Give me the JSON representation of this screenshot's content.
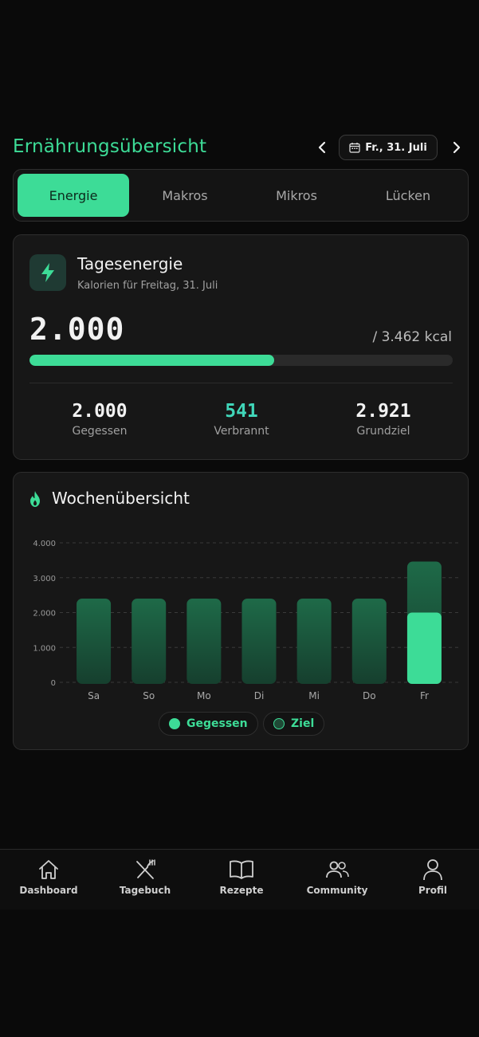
{
  "header": {
    "title": "Ernährungsübersicht",
    "date_label": "Fr., 31. Juli"
  },
  "tabs": [
    {
      "label": "Energie",
      "active": true
    },
    {
      "label": "Makros",
      "active": false
    },
    {
      "label": "Mikros",
      "active": false
    },
    {
      "label": "Lücken",
      "active": false
    }
  ],
  "energy": {
    "title": "Tagesenergie",
    "subtitle": "Kalorien für Freitag, 31. Juli",
    "consumed": "2.000",
    "goal_text": "/ 3.462 kcal",
    "progress_fraction": 0.5777,
    "stats": [
      {
        "value": "2.000",
        "label": "Gegessen"
      },
      {
        "value": "541",
        "label": "Verbrannt"
      },
      {
        "value": "2.921",
        "label": "Grundziel"
      }
    ]
  },
  "week": {
    "title": "Wochenübersicht",
    "legend": [
      {
        "label": "Gegessen"
      },
      {
        "label": "Ziel"
      }
    ]
  },
  "chart_data": {
    "type": "bar",
    "categories": [
      "Sa",
      "So",
      "Mo",
      "Di",
      "Mi",
      "Do",
      "Fr"
    ],
    "series": [
      {
        "name": "Gegessen",
        "values": [
          0,
          0,
          0,
          0,
          0,
          0,
          2000
        ]
      },
      {
        "name": "Ziel",
        "values": [
          2400,
          2400,
          2400,
          2400,
          2400,
          2400,
          3462
        ]
      }
    ],
    "y_ticks": [
      "4.000",
      "3.000",
      "2.000",
      "1.000",
      "0"
    ],
    "ylim": [
      0,
      4000
    ],
    "grid": true,
    "colors": {
      "eaten": "#3ddc97",
      "goal": "#1e6a48"
    }
  },
  "bottom_nav": [
    {
      "label": "Dashboard",
      "icon": "home-icon"
    },
    {
      "label": "Tagebuch",
      "icon": "utensils-icon"
    },
    {
      "label": "Rezepte",
      "icon": "book-icon"
    },
    {
      "label": "Community",
      "icon": "users-icon"
    },
    {
      "label": "Profil",
      "icon": "user-icon"
    }
  ]
}
